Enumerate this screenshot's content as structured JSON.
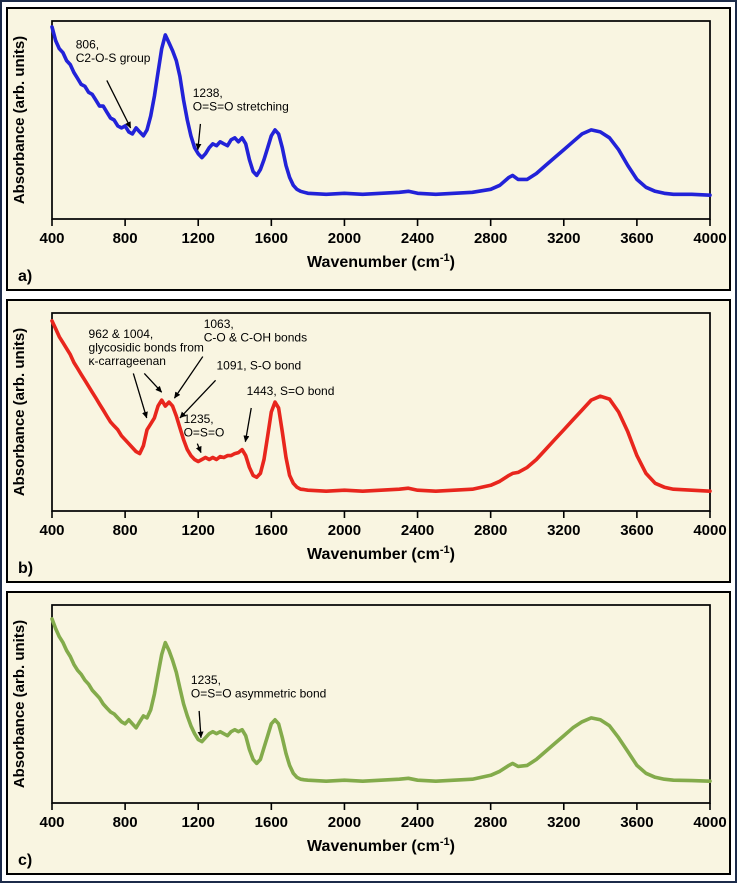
{
  "chart_data": [
    {
      "id": "a",
      "type": "line",
      "panel_label": "a)",
      "color": "#2222d8",
      "xlabel": "Wavenumber (cm⁻¹)",
      "ylabel": "Absorbance (arb. units)",
      "xlim": [
        400,
        4000
      ],
      "xticks": [
        400,
        800,
        1200,
        1600,
        2000,
        2400,
        2800,
        3200,
        3600,
        4000
      ],
      "x": [
        400,
        420,
        440,
        460,
        480,
        500,
        520,
        540,
        560,
        580,
        600,
        620,
        640,
        660,
        680,
        700,
        720,
        740,
        760,
        780,
        800,
        820,
        840,
        860,
        880,
        900,
        920,
        940,
        960,
        980,
        1000,
        1020,
        1040,
        1060,
        1080,
        1100,
        1120,
        1140,
        1160,
        1180,
        1200,
        1220,
        1240,
        1260,
        1280,
        1300,
        1320,
        1340,
        1360,
        1380,
        1400,
        1420,
        1440,
        1460,
        1480,
        1500,
        1520,
        1540,
        1560,
        1580,
        1600,
        1620,
        1640,
        1660,
        1680,
        1700,
        1720,
        1740,
        1760,
        1780,
        1800,
        1900,
        2000,
        2100,
        2200,
        2300,
        2350,
        2400,
        2500,
        2600,
        2700,
        2800,
        2850,
        2900,
        2920,
        2950,
        3000,
        3050,
        3100,
        3150,
        3200,
        3250,
        3300,
        3350,
        3400,
        3450,
        3500,
        3550,
        3600,
        3650,
        3700,
        3750,
        3800,
        3900,
        4000
      ],
      "y": [
        0.97,
        0.9,
        0.86,
        0.84,
        0.8,
        0.78,
        0.74,
        0.71,
        0.68,
        0.67,
        0.64,
        0.63,
        0.6,
        0.57,
        0.57,
        0.54,
        0.51,
        0.5,
        0.47,
        0.46,
        0.47,
        0.44,
        0.43,
        0.46,
        0.44,
        0.42,
        0.45,
        0.52,
        0.62,
        0.74,
        0.86,
        0.93,
        0.89,
        0.85,
        0.8,
        0.72,
        0.6,
        0.5,
        0.42,
        0.36,
        0.33,
        0.31,
        0.33,
        0.36,
        0.38,
        0.37,
        0.39,
        0.38,
        0.37,
        0.4,
        0.41,
        0.39,
        0.41,
        0.38,
        0.3,
        0.24,
        0.22,
        0.25,
        0.3,
        0.36,
        0.42,
        0.45,
        0.43,
        0.36,
        0.27,
        0.21,
        0.17,
        0.15,
        0.14,
        0.135,
        0.13,
        0.125,
        0.13,
        0.125,
        0.13,
        0.135,
        0.14,
        0.13,
        0.125,
        0.13,
        0.135,
        0.15,
        0.17,
        0.21,
        0.22,
        0.2,
        0.2,
        0.23,
        0.27,
        0.31,
        0.35,
        0.39,
        0.43,
        0.45,
        0.44,
        0.41,
        0.35,
        0.27,
        0.2,
        0.16,
        0.14,
        0.13,
        0.125,
        0.125,
        0.12
      ],
      "annotations": [
        {
          "lines": [
            "806,",
            "C2-O-S group"
          ],
          "tx": 530,
          "ty": 0.86,
          "arrows": [
            {
              "from": [
                700,
                0.7
              ],
              "to": [
                830,
                0.46
              ]
            }
          ]
        },
        {
          "lines": [
            "1238,",
            "O=S=O stretching"
          ],
          "tx": 1170,
          "ty": 0.615,
          "arrows": [
            {
              "from": [
                1212,
                0.48
              ],
              "to": [
                1198,
                0.35
              ]
            }
          ]
        }
      ]
    },
    {
      "id": "b",
      "type": "line",
      "panel_label": "b)",
      "color": "#e8261d",
      "xlabel": "Wavenumber (cm⁻¹)",
      "ylabel": "Absorbance (arb. units)",
      "xlim": [
        400,
        4000
      ],
      "xticks": [
        400,
        800,
        1200,
        1600,
        2000,
        2400,
        2800,
        3200,
        3600,
        4000
      ],
      "x": [
        400,
        420,
        440,
        460,
        480,
        500,
        520,
        540,
        560,
        580,
        600,
        620,
        640,
        660,
        680,
        700,
        720,
        740,
        760,
        780,
        800,
        820,
        840,
        860,
        880,
        900,
        920,
        940,
        960,
        980,
        1000,
        1020,
        1040,
        1060,
        1080,
        1100,
        1120,
        1140,
        1160,
        1180,
        1200,
        1220,
        1240,
        1260,
        1280,
        1300,
        1320,
        1340,
        1360,
        1380,
        1400,
        1420,
        1440,
        1460,
        1480,
        1500,
        1520,
        1540,
        1560,
        1580,
        1600,
        1620,
        1640,
        1660,
        1680,
        1700,
        1720,
        1740,
        1760,
        1780,
        1800,
        1900,
        2000,
        2100,
        2200,
        2300,
        2350,
        2400,
        2500,
        2600,
        2700,
        2800,
        2850,
        2900,
        2920,
        2950,
        3000,
        3050,
        3100,
        3150,
        3200,
        3250,
        3300,
        3350,
        3400,
        3450,
        3500,
        3550,
        3600,
        3650,
        3700,
        3750,
        3800,
        3900,
        4000
      ],
      "y": [
        0.96,
        0.92,
        0.88,
        0.85,
        0.82,
        0.79,
        0.75,
        0.72,
        0.69,
        0.66,
        0.63,
        0.6,
        0.57,
        0.54,
        0.51,
        0.48,
        0.45,
        0.43,
        0.41,
        0.38,
        0.36,
        0.34,
        0.32,
        0.3,
        0.29,
        0.33,
        0.41,
        0.44,
        0.47,
        0.53,
        0.56,
        0.53,
        0.55,
        0.53,
        0.48,
        0.42,
        0.36,
        0.31,
        0.28,
        0.26,
        0.25,
        0.26,
        0.27,
        0.26,
        0.27,
        0.26,
        0.275,
        0.27,
        0.28,
        0.28,
        0.29,
        0.295,
        0.31,
        0.28,
        0.22,
        0.18,
        0.17,
        0.19,
        0.26,
        0.38,
        0.5,
        0.55,
        0.52,
        0.4,
        0.27,
        0.18,
        0.14,
        0.12,
        0.11,
        0.108,
        0.105,
        0.1,
        0.105,
        0.1,
        0.105,
        0.11,
        0.115,
        0.105,
        0.1,
        0.105,
        0.11,
        0.13,
        0.15,
        0.18,
        0.19,
        0.195,
        0.22,
        0.26,
        0.31,
        0.36,
        0.41,
        0.46,
        0.51,
        0.56,
        0.58,
        0.565,
        0.5,
        0.4,
        0.28,
        0.19,
        0.14,
        0.12,
        0.11,
        0.105,
        0.1
      ],
      "annotations": [
        {
          "lines": [
            "962 & 1004,",
            "glycosidic bonds from",
            "κ-carrageenan"
          ],
          "tx": 600,
          "ty": 0.875,
          "arrows": [
            {
              "from": [
                845,
                0.695
              ],
              "to": [
                918,
                0.47
              ]
            },
            {
              "from": [
                905,
                0.695
              ],
              "to": [
                1000,
                0.6
              ]
            }
          ]
        },
        {
          "lines": [
            "1063,",
            "C-O & C-OH bonds"
          ],
          "tx": 1230,
          "ty": 0.925,
          "arrows": [
            {
              "from": [
                1225,
                0.78
              ],
              "to": [
                1070,
                0.57
              ]
            }
          ]
        },
        {
          "lines": [
            "1091, S-O bond"
          ],
          "tx": 1300,
          "ty": 0.715,
          "arrows": [
            {
              "from": [
                1295,
                0.66
              ],
              "to": [
                1100,
                0.47
              ]
            }
          ]
        },
        {
          "lines": [
            "1235,",
            "O=S=O"
          ],
          "tx": 1120,
          "ty": 0.445,
          "arrows": [
            {
              "from": [
                1195,
                0.34
              ],
              "to": [
                1215,
                0.295
              ]
            }
          ]
        },
        {
          "lines": [
            "1443, S=O bond"
          ],
          "tx": 1465,
          "ty": 0.585,
          "arrows": [
            {
              "from": [
                1490,
                0.52
              ],
              "to": [
                1458,
                0.35
              ]
            }
          ]
        }
      ]
    },
    {
      "id": "c",
      "type": "line",
      "panel_label": "c)",
      "color": "#83ab4b",
      "xlabel": "Wavenumber (cm⁻¹)",
      "ylabel": "Absorbance (arb. units)",
      "xlim": [
        400,
        4000
      ],
      "xticks": [
        400,
        800,
        1200,
        1600,
        2000,
        2400,
        2800,
        3200,
        3600,
        4000
      ],
      "x": [
        400,
        420,
        440,
        460,
        480,
        500,
        520,
        540,
        560,
        580,
        600,
        620,
        640,
        660,
        680,
        700,
        720,
        740,
        760,
        780,
        800,
        820,
        840,
        860,
        880,
        900,
        920,
        940,
        960,
        980,
        1000,
        1020,
        1040,
        1060,
        1080,
        1100,
        1120,
        1140,
        1160,
        1180,
        1200,
        1220,
        1240,
        1260,
        1280,
        1300,
        1320,
        1340,
        1360,
        1380,
        1400,
        1420,
        1440,
        1460,
        1480,
        1500,
        1520,
        1540,
        1560,
        1580,
        1600,
        1620,
        1640,
        1660,
        1680,
        1700,
        1720,
        1740,
        1760,
        1780,
        1800,
        1900,
        2000,
        2100,
        2200,
        2300,
        2350,
        2400,
        2500,
        2600,
        2700,
        2800,
        2850,
        2900,
        2920,
        2950,
        3000,
        3050,
        3100,
        3150,
        3200,
        3250,
        3300,
        3350,
        3400,
        3450,
        3500,
        3550,
        3600,
        3650,
        3700,
        3750,
        3800,
        3900,
        4000
      ],
      "y": [
        0.93,
        0.88,
        0.84,
        0.81,
        0.77,
        0.74,
        0.7,
        0.67,
        0.65,
        0.62,
        0.6,
        0.57,
        0.55,
        0.53,
        0.5,
        0.48,
        0.46,
        0.45,
        0.43,
        0.41,
        0.4,
        0.42,
        0.4,
        0.38,
        0.41,
        0.44,
        0.43,
        0.47,
        0.55,
        0.65,
        0.75,
        0.81,
        0.77,
        0.72,
        0.66,
        0.58,
        0.5,
        0.44,
        0.39,
        0.35,
        0.32,
        0.31,
        0.33,
        0.35,
        0.36,
        0.35,
        0.36,
        0.35,
        0.34,
        0.36,
        0.37,
        0.36,
        0.37,
        0.34,
        0.27,
        0.22,
        0.2,
        0.22,
        0.28,
        0.34,
        0.4,
        0.42,
        0.4,
        0.33,
        0.25,
        0.19,
        0.15,
        0.13,
        0.12,
        0.117,
        0.115,
        0.11,
        0.115,
        0.11,
        0.115,
        0.12,
        0.125,
        0.115,
        0.11,
        0.115,
        0.12,
        0.14,
        0.16,
        0.19,
        0.2,
        0.185,
        0.19,
        0.22,
        0.26,
        0.3,
        0.34,
        0.38,
        0.41,
        0.43,
        0.42,
        0.39,
        0.33,
        0.26,
        0.19,
        0.15,
        0.13,
        0.12,
        0.115,
        0.113,
        0.11
      ],
      "annotations": [
        {
          "lines": [
            "1235,",
            "O=S=O asymmetric bond"
          ],
          "tx": 1160,
          "ty": 0.6,
          "arrows": [
            {
              "from": [
                1205,
                0.465
              ],
              "to": [
                1215,
                0.33
              ]
            }
          ]
        }
      ]
    }
  ],
  "style": {
    "panel_background": "#f9f5e1",
    "frame_border": "#000000",
    "outer_border": "#1c2b4a"
  }
}
